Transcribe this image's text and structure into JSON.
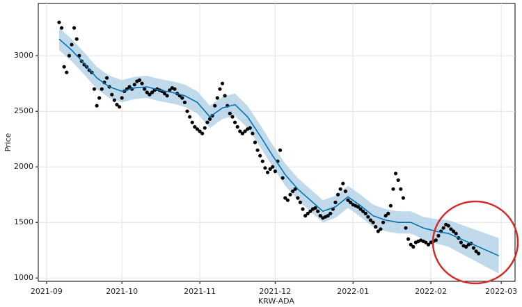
{
  "chart_data": {
    "type": "forecast",
    "xlabel": "KRW-ADA",
    "ylabel": "Price",
    "xlim": [
      -3.3,
      186.5
    ],
    "ylim": [
      970,
      3470
    ],
    "xticks": [
      {
        "value": 0,
        "label": "2021-09"
      },
      {
        "value": 30,
        "label": "2021-10"
      },
      {
        "value": 61,
        "label": "2021-11"
      },
      {
        "value": 91,
        "label": "2021-12"
      },
      {
        "value": 122,
        "label": "2022-01"
      },
      {
        "value": 153,
        "label": "2022-02"
      },
      {
        "value": 181,
        "label": "2022-03"
      }
    ],
    "yticks": [
      1000,
      1500,
      2000,
      2500,
      3000
    ],
    "grid": true,
    "points": {
      "color": "#000000",
      "x": [
        5,
        6,
        7,
        8,
        9,
        10,
        11,
        12,
        13,
        14,
        15,
        16,
        17,
        18,
        19,
        20,
        21,
        22,
        23,
        24,
        25,
        26,
        27,
        28,
        29,
        30,
        31,
        32,
        33,
        34,
        35,
        36,
        37,
        38,
        39,
        40,
        41,
        42,
        43,
        44,
        45,
        46,
        47,
        48,
        49,
        50,
        51,
        52,
        53,
        54,
        55,
        56,
        57,
        58,
        59,
        60,
        61,
        62,
        63,
        64,
        65,
        66,
        67,
        68,
        69,
        70,
        71,
        72,
        73,
        74,
        75,
        76,
        77,
        78,
        79,
        80,
        81,
        82,
        83,
        84,
        85,
        86,
        87,
        88,
        89,
        90,
        91,
        92,
        93,
        94,
        95,
        96,
        97,
        98,
        99,
        100,
        101,
        102,
        103,
        104,
        105,
        106,
        107,
        108,
        109,
        110,
        111,
        112,
        113,
        114,
        115,
        116,
        117,
        118,
        119,
        120,
        121,
        122,
        123,
        124,
        125,
        126,
        127,
        128,
        129,
        130,
        131,
        132,
        133,
        134,
        135,
        136,
        137,
        138,
        139,
        140,
        141,
        142,
        143,
        144,
        145,
        146,
        147,
        148,
        149,
        150,
        151,
        152,
        153,
        154,
        155,
        156,
        157,
        158,
        159,
        160,
        161,
        162,
        163,
        164,
        165,
        166,
        167,
        168,
        169,
        170,
        171,
        172
      ],
      "values": [
        3300,
        3250,
        2900,
        2850,
        3000,
        3100,
        3250,
        3150,
        3000,
        2950,
        2920,
        2900,
        2870,
        2850,
        2700,
        2550,
        2620,
        2700,
        2760,
        2800,
        2720,
        2650,
        2600,
        2560,
        2540,
        2620,
        2680,
        2700,
        2720,
        2700,
        2740,
        2770,
        2780,
        2750,
        2700,
        2670,
        2650,
        2670,
        2690,
        2700,
        2690,
        2680,
        2660,
        2640,
        2690,
        2710,
        2700,
        2660,
        2640,
        2620,
        2580,
        2500,
        2450,
        2400,
        2360,
        2340,
        2320,
        2300,
        2350,
        2400,
        2430,
        2460,
        2550,
        2620,
        2700,
        2750,
        2640,
        2550,
        2480,
        2450,
        2400,
        2360,
        2320,
        2300,
        2320,
        2340,
        2350,
        2300,
        2220,
        2150,
        2100,
        2050,
        1990,
        1950,
        1980,
        2000,
        1960,
        2050,
        2150,
        1900,
        1720,
        1700,
        1750,
        1780,
        1800,
        1720,
        1680,
        1620,
        1560,
        1580,
        1600,
        1620,
        1630,
        1600,
        1560,
        1540,
        1550,
        1560,
        1580,
        1620,
        1680,
        1750,
        1800,
        1850,
        1780,
        1700,
        1680,
        1660,
        1650,
        1640,
        1620,
        1600,
        1580,
        1550,
        1520,
        1500,
        1460,
        1420,
        1440,
        1500,
        1560,
        1580,
        1650,
        1800,
        1940,
        1880,
        1800,
        1720,
        1450,
        1350,
        1300,
        1280,
        1320,
        1330,
        1340,
        1330,
        1320,
        1300,
        1320,
        1330,
        1340,
        1380,
        1420,
        1450,
        1480,
        1470,
        1440,
        1420,
        1400,
        1360,
        1320,
        1290,
        1280,
        1300,
        1310,
        1270,
        1240,
        1220
      ]
    },
    "forecast": {
      "color": "#0072b2",
      "band_color": "#a6cbe3",
      "x": [
        5,
        10,
        15,
        20,
        25,
        30,
        35,
        40,
        45,
        50,
        55,
        60,
        65,
        70,
        75,
        80,
        85,
        90,
        95,
        100,
        105,
        110,
        115,
        120,
        125,
        130,
        135,
        140,
        145,
        150,
        155,
        160,
        165,
        170,
        175,
        180
      ],
      "values": [
        3150,
        3050,
        2930,
        2800,
        2720,
        2680,
        2710,
        2720,
        2690,
        2670,
        2640,
        2580,
        2450,
        2530,
        2560,
        2450,
        2280,
        2100,
        1930,
        1800,
        1700,
        1600,
        1640,
        1730,
        1650,
        1560,
        1520,
        1500,
        1500,
        1450,
        1420,
        1400,
        1350,
        1300,
        1250,
        1200
      ],
      "lower": [
        3050,
        2950,
        2830,
        2700,
        2620,
        2580,
        2610,
        2620,
        2590,
        2570,
        2540,
        2480,
        2350,
        2430,
        2460,
        2350,
        2180,
        2000,
        1830,
        1700,
        1600,
        1500,
        1540,
        1630,
        1550,
        1460,
        1420,
        1400,
        1400,
        1350,
        1310,
        1280,
        1220,
        1160,
        1100,
        1040
      ],
      "upper": [
        3250,
        3150,
        3030,
        2900,
        2820,
        2780,
        2810,
        2820,
        2790,
        2770,
        2740,
        2680,
        2550,
        2630,
        2660,
        2550,
        2380,
        2200,
        2030,
        1900,
        1800,
        1700,
        1740,
        1830,
        1750,
        1660,
        1620,
        1600,
        1600,
        1550,
        1530,
        1520,
        1480,
        1440,
        1400,
        1360
      ]
    }
  }
}
